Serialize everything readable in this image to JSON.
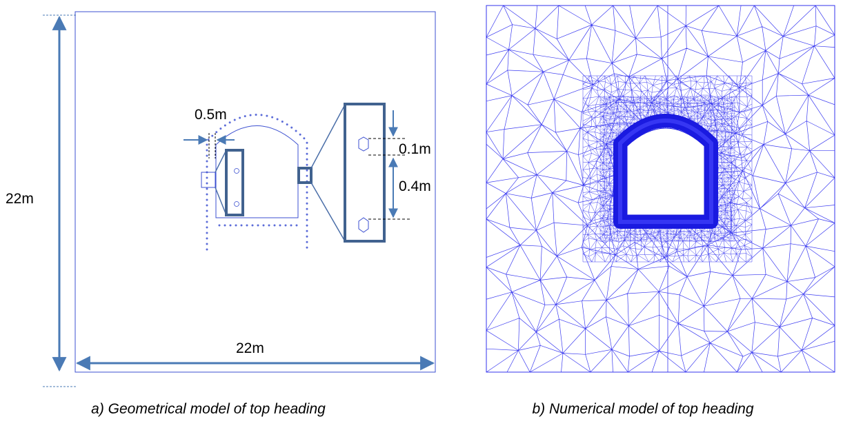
{
  "panel_a": {
    "dimensions": {
      "height": "22m",
      "width": "22m",
      "gap": "0.5m",
      "spacing_small": "0.1m",
      "spacing_large": "0.4m"
    },
    "caption": "a) Geometrical model of top heading"
  },
  "panel_b": {
    "caption": "b) Numerical model of top heading"
  }
}
